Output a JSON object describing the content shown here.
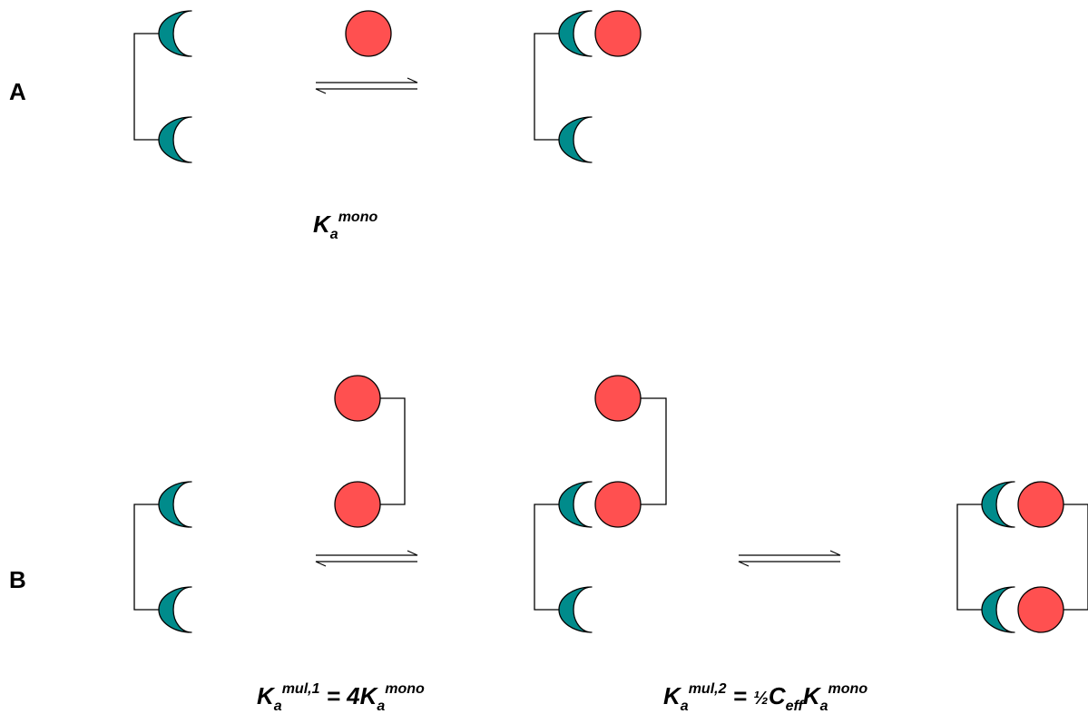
{
  "panels": {
    "a": {
      "label": "A"
    },
    "b": {
      "label": "B"
    }
  },
  "equations": {
    "a_mono": {
      "k": "K",
      "sub": "a",
      "sup": "mono"
    },
    "b_mul1": {
      "k": "K",
      "sub": "a",
      "sup": "mul,1",
      "equals": " = ",
      "coef": "4",
      "k2": "K",
      "sub2": "a",
      "sup2": "mono"
    },
    "b_mul2": {
      "k": "K",
      "sub": "a",
      "sup": "mul,2",
      "equals": " = ",
      "coef": "½",
      "c": "C",
      "csub": "eff",
      "k2": "K",
      "sub2": "a",
      "sup2": "mono"
    }
  },
  "colors": {
    "receptor": "#008b8b",
    "ligand": "#ff5050",
    "line": "#000000"
  }
}
